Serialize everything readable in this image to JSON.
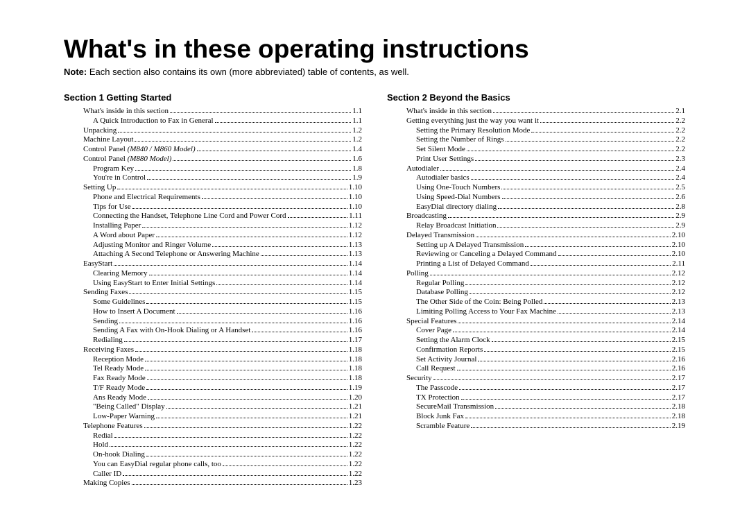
{
  "page_title": "What's in these operating instructions",
  "note_bold": "Note:",
  "note_text": " Each section also contains its own (more abbreviated) table of contents, as well.",
  "sections": [
    {
      "header": "Section 1 Getting Started",
      "entries": [
        {
          "label": "What's inside in this section",
          "page": "1.1",
          "indent": 0
        },
        {
          "label": "A Quick Introduction to Fax in General",
          "page": "1.1",
          "indent": 1
        },
        {
          "label": "Unpacking",
          "page": "1.2",
          "indent": 0
        },
        {
          "label": "Machine Layout",
          "page": "1.2",
          "indent": 0
        },
        {
          "label": "Control Panel ",
          "italic_suffix": "(M840 / M860 Model)",
          "page": "1.4",
          "indent": 0
        },
        {
          "label": "Control Panel ",
          "italic_suffix": "(M880 Model)",
          "page": "1.6",
          "indent": 0
        },
        {
          "label": "Program Key",
          "page": "1.8",
          "indent": 1
        },
        {
          "label": "You're in Control",
          "page": "1.9",
          "indent": 1
        },
        {
          "label": "Setting Up",
          "page": "1.10",
          "indent": 0
        },
        {
          "label": "Phone and Electrical Requirements",
          "page": "1.10",
          "indent": 1
        },
        {
          "label": "Tips for Use",
          "page": "1.10",
          "indent": 1
        },
        {
          "label": "Connecting the Handset, Telephone Line Cord and Power Cord",
          "page": "1.11",
          "indent": 1
        },
        {
          "label": "Installing Paper",
          "page": "1.12",
          "indent": 1
        },
        {
          "label": "A Word about Paper",
          "page": "1.12",
          "indent": 1
        },
        {
          "label": "Adjusting Monitor and Ringer Volume",
          "page": "1.13",
          "indent": 1
        },
        {
          "label": "Attaching A Second Telephone or Answering Machine",
          "page": "1.13",
          "indent": 1
        },
        {
          "label": "EasyStart",
          "page": "1.14",
          "indent": 0
        },
        {
          "label": "Clearing Memory",
          "page": "1.14",
          "indent": 1
        },
        {
          "label": "Using EasyStart to Enter Initial Settings",
          "page": "1.14",
          "indent": 1
        },
        {
          "label": "Sending Faxes",
          "page": "1.15",
          "indent": 0
        },
        {
          "label": "Some Guidelines",
          "page": "1.15",
          "indent": 1
        },
        {
          "label": "How to Insert A Document",
          "page": "1.16",
          "indent": 1
        },
        {
          "label": "Sending",
          "page": "1.16",
          "indent": 1
        },
        {
          "label": "Sending A Fax with On-Hook Dialing or A Handset",
          "page": "1.16",
          "indent": 1
        },
        {
          "label": "Redialing",
          "page": "1.17",
          "indent": 1
        },
        {
          "label": "Receiving Faxes",
          "page": "1.18",
          "indent": 0
        },
        {
          "label": "Reception Mode",
          "page": "1.18",
          "indent": 1
        },
        {
          "label": "Tel Ready Mode",
          "page": "1.18",
          "indent": 1
        },
        {
          "label": "Fax Ready Mode",
          "page": "1.18",
          "indent": 1
        },
        {
          "label": "T/F Ready Mode",
          "page": "1.19",
          "indent": 1
        },
        {
          "label": "Ans Ready Mode",
          "page": "1.20",
          "indent": 1
        },
        {
          "label": "\"Being Called\" Display",
          "page": "1.21",
          "indent": 1
        },
        {
          "label": "Low-Paper Warning",
          "page": "1.21",
          "indent": 1
        },
        {
          "label": "Telephone Features",
          "page": "1.22",
          "indent": 0
        },
        {
          "label": "Redial",
          "page": "1.22",
          "indent": 1
        },
        {
          "label": "Hold",
          "page": "1.22",
          "indent": 1
        },
        {
          "label": "On-hook Dialing",
          "page": "1.22",
          "indent": 1
        },
        {
          "label": "You can EasyDial regular phone calls, too",
          "page": "1.22",
          "indent": 1
        },
        {
          "label": "Caller ID",
          "page": "1.22",
          "indent": 1
        },
        {
          "label": "Making Copies",
          "page": "1.23",
          "indent": 0
        }
      ]
    },
    {
      "header": "Section 2 Beyond the Basics",
      "entries": [
        {
          "label": "What's inside in this section",
          "page": "2.1",
          "indent": 0
        },
        {
          "label": "Getting everything just the way you want it",
          "page": "2.2",
          "indent": 0
        },
        {
          "label": "Setting the Primary Resolution Mode",
          "page": "2.2",
          "indent": 1
        },
        {
          "label": "Setting the Number of Rings",
          "page": "2.2",
          "indent": 1
        },
        {
          "label": "Set Silent Mode",
          "page": "2.2",
          "indent": 1
        },
        {
          "label": "Print User Settings",
          "page": "2.3",
          "indent": 1
        },
        {
          "label": "Autodialer",
          "page": "2.4",
          "indent": 0
        },
        {
          "label": "Autodialer basics",
          "page": "2.4",
          "indent": 1
        },
        {
          "label": "Using One-Touch Numbers",
          "page": "2.5",
          "indent": 1
        },
        {
          "label": "Using Speed-Dial Numbers",
          "page": "2.6",
          "indent": 1
        },
        {
          "label": "EasyDial directory dialing",
          "page": "2.8",
          "indent": 1
        },
        {
          "label": "Broadcasting",
          "page": "2.9",
          "indent": 0
        },
        {
          "label": "Relay Broadcast Initiation",
          "page": "2.9",
          "indent": 1
        },
        {
          "label": "Delayed Transmission",
          "page": "2.10",
          "indent": 0
        },
        {
          "label": "Setting up A Delayed Transmission",
          "page": "2.10",
          "indent": 1
        },
        {
          "label": "Reviewing or Canceling a Delayed Command",
          "page": "2.10",
          "indent": 1
        },
        {
          "label": "Printing a List of Delayed Command",
          "page": "2.11",
          "indent": 1
        },
        {
          "label": "Polling",
          "page": "2.12",
          "indent": 0
        },
        {
          "label": "Regular Polling",
          "page": "2.12",
          "indent": 1
        },
        {
          "label": "Database Polling",
          "page": "2.12",
          "indent": 1
        },
        {
          "label": "The Other Side of the Coin: Being Polled",
          "page": "2.13",
          "indent": 1
        },
        {
          "label": "Limiting Polling Access to Your Fax Machine",
          "page": "2.13",
          "indent": 1
        },
        {
          "label": "Special Features",
          "page": "2.14",
          "indent": 0
        },
        {
          "label": "Cover Page",
          "page": "2.14",
          "indent": 1
        },
        {
          "label": "Setting the Alarm Clock",
          "page": "2.15",
          "indent": 1
        },
        {
          "label": "Confirmation Reports",
          "page": "2.15",
          "indent": 1
        },
        {
          "label": "Set Activity Journal",
          "page": "2.16",
          "indent": 1
        },
        {
          "label": "Call Request",
          "page": "2.16",
          "indent": 1
        },
        {
          "label": "Security",
          "page": "2.17",
          "indent": 0
        },
        {
          "label": "The Passcode",
          "page": "2.17",
          "indent": 1
        },
        {
          "label": "TX Protection",
          "page": "2.17",
          "indent": 1
        },
        {
          "label": "SecureMail Transmission",
          "page": "2.18",
          "indent": 1
        },
        {
          "label": "Block Junk Fax",
          "page": "2.18",
          "indent": 1
        },
        {
          "label": "Scramble Feature",
          "page": "2.19",
          "indent": 1
        }
      ]
    }
  ]
}
